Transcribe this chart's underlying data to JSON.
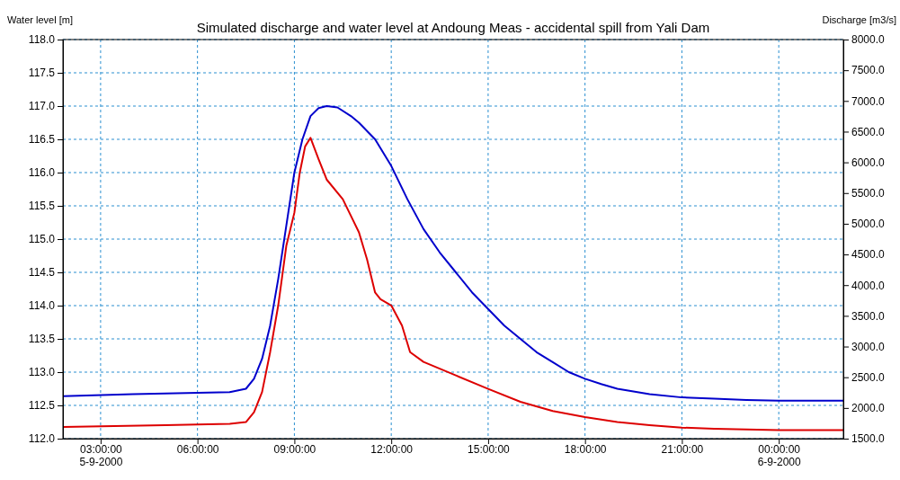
{
  "chart_data": {
    "type": "line",
    "title": "Simulated discharge and water level at Andoung Meas - accidental spill from Yali Dam",
    "ylabel": "Water level [m]",
    "y2label": "Discharge [m3/s]",
    "xlim": [
      "2000-09-05T01:50",
      "2000-09-06T02:00"
    ],
    "xticks": [
      {
        "value": "2000-09-05T03:00",
        "label": "03:00:00\n5-9-2000"
      },
      {
        "value": "2000-09-05T06:00",
        "label": "06:00:00"
      },
      {
        "value": "2000-09-05T09:00",
        "label": "09:00:00"
      },
      {
        "value": "2000-09-05T12:00",
        "label": "12:00:00"
      },
      {
        "value": "2000-09-05T15:00",
        "label": "15:00:00"
      },
      {
        "value": "2000-09-05T18:00",
        "label": "18:00:00"
      },
      {
        "value": "2000-09-05T21:00",
        "label": "21:00:00"
      },
      {
        "value": "2000-09-06T00:00",
        "label": "00:00:00\n6-9-2000"
      }
    ],
    "ylim": [
      112,
      118
    ],
    "yticks": [
      {
        "value": 112,
        "label": "112.0"
      },
      {
        "value": 112.5,
        "label": "112.5"
      },
      {
        "value": 113,
        "label": "113.0"
      },
      {
        "value": 113.5,
        "label": "113.5"
      },
      {
        "value": 114,
        "label": "114.0"
      },
      {
        "value": 114.5,
        "label": "114.5"
      },
      {
        "value": 115,
        "label": "115.0"
      },
      {
        "value": 115.5,
        "label": "115.5"
      },
      {
        "value": 116,
        "label": "116.0"
      },
      {
        "value": 116.5,
        "label": "116.5"
      },
      {
        "value": 117,
        "label": "117.0"
      },
      {
        "value": 117.5,
        "label": "117.5"
      },
      {
        "value": 118,
        "label": "118.0"
      }
    ],
    "y2lim": [
      1500,
      8000
    ],
    "y2ticks": [
      {
        "value": 1500,
        "label": "1500.0"
      },
      {
        "value": 2000,
        "label": "2000.0"
      },
      {
        "value": 2500,
        "label": "2500.0"
      },
      {
        "value": 3000,
        "label": "3000.0"
      },
      {
        "value": 3500,
        "label": "3500.0"
      },
      {
        "value": 4000,
        "label": "4000.0"
      },
      {
        "value": 4500,
        "label": "4500.0"
      },
      {
        "value": 5000,
        "label": "5000.0"
      },
      {
        "value": 5500,
        "label": "5500.0"
      },
      {
        "value": 6000,
        "label": "6000.0"
      },
      {
        "value": 6500,
        "label": "6500.0"
      },
      {
        "value": 7000,
        "label": "7000.0"
      },
      {
        "value": 7500,
        "label": "7500.0"
      },
      {
        "value": 8000,
        "label": "8000.0"
      }
    ],
    "grid": true,
    "line_style": "solid",
    "marker": "none",
    "series": [
      {
        "color": "#0000cc",
        "x": [
          "2000-09-05T01:50",
          "2000-09-05T04:00",
          "2000-09-05T06:00",
          "2000-09-05T07:00",
          "2000-09-05T07:30",
          "2000-09-05T07:45",
          "2000-09-05T08:00",
          "2000-09-05T08:15",
          "2000-09-05T08:30",
          "2000-09-05T08:45",
          "2000-09-05T09:00",
          "2000-09-05T09:15",
          "2000-09-05T09:30",
          "2000-09-05T09:45",
          "2000-09-05T10:00",
          "2000-09-05T10:20",
          "2000-09-05T10:45",
          "2000-09-05T11:00",
          "2000-09-05T11:30",
          "2000-09-05T12:00",
          "2000-09-05T12:30",
          "2000-09-05T13:00",
          "2000-09-05T13:30",
          "2000-09-05T14:00",
          "2000-09-05T14:30",
          "2000-09-05T15:00",
          "2000-09-05T15:30",
          "2000-09-05T16:00",
          "2000-09-05T16:30",
          "2000-09-05T17:00",
          "2000-09-05T17:30",
          "2000-09-05T18:00",
          "2000-09-05T18:30",
          "2000-09-05T19:00",
          "2000-09-05T20:00",
          "2000-09-05T21:00",
          "2000-09-05T22:00",
          "2000-09-05T23:00",
          "2000-09-06T00:00",
          "2000-09-06T02:00"
        ],
        "values": [
          112.64,
          112.67,
          112.69,
          112.7,
          112.75,
          112.9,
          113.2,
          113.7,
          114.4,
          115.2,
          116.0,
          116.5,
          116.85,
          116.97,
          117.0,
          116.98,
          116.85,
          116.75,
          116.5,
          116.1,
          115.6,
          115.15,
          114.8,
          114.5,
          114.2,
          113.95,
          113.7,
          113.5,
          113.3,
          113.15,
          113.0,
          112.9,
          112.82,
          112.75,
          112.67,
          112.62,
          112.6,
          112.58,
          112.57,
          112.57
        ]
      },
      {
        "color": "#dd0000",
        "axis": "y2",
        "x": [
          "2000-09-05T01:50",
          "2000-09-05T05:00",
          "2000-09-05T07:00",
          "2000-09-05T07:30",
          "2000-09-05T07:45",
          "2000-09-05T08:00",
          "2000-09-05T08:15",
          "2000-09-05T08:30",
          "2000-09-05T08:45",
          "2000-09-05T09:00",
          "2000-09-05T09:10",
          "2000-09-05T09:20",
          "2000-09-05T09:30",
          "2000-09-05T09:45",
          "2000-09-05T10:00",
          "2000-09-05T10:30",
          "2000-09-05T11:00",
          "2000-09-05T11:15",
          "2000-09-05T11:30",
          "2000-09-05T11:40",
          "2000-09-05T12:00",
          "2000-09-05T12:20",
          "2000-09-05T12:35",
          "2000-09-05T13:00",
          "2000-09-05T14:00",
          "2000-09-05T15:00",
          "2000-09-05T16:00",
          "2000-09-05T17:00",
          "2000-09-05T18:00",
          "2000-09-05T19:00",
          "2000-09-05T20:00",
          "2000-09-05T21:00",
          "2000-09-05T22:00",
          "2000-09-06T00:00",
          "2000-09-06T02:00"
        ],
        "values": [
          1690,
          1720,
          1740,
          1770,
          1930,
          2260,
          2910,
          3670,
          4640,
          5180,
          5830,
          6260,
          6400,
          6050,
          5720,
          5400,
          4860,
          4420,
          3880,
          3770,
          3670,
          3340,
          2910,
          2750,
          2530,
          2310,
          2100,
          1950,
          1850,
          1770,
          1720,
          1680,
          1660,
          1640,
          1640
        ]
      }
    ]
  }
}
